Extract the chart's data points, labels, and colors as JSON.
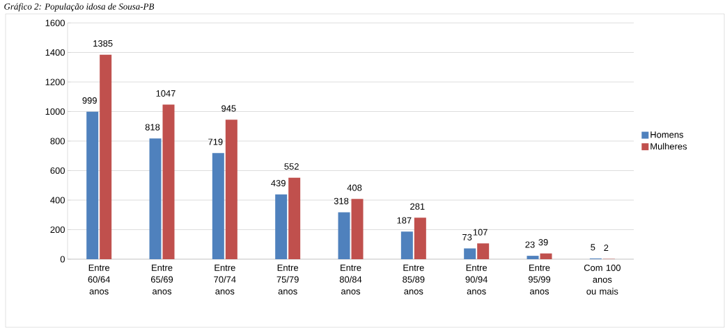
{
  "chart_data": {
    "type": "bar",
    "title": "Gráfico 2: População idosa de Sousa-PB",
    "categories": [
      "Entre 60/64 anos",
      "Entre 65/69 anos",
      "Entre 70/74 anos",
      "Entre 75/79 anos",
      "Entre 80/84 anos",
      "Entre 85/89 anos",
      "Entre 90/94 anos",
      "Entre 95/99 anos",
      "Com 100 anos ou mais"
    ],
    "series": [
      {
        "name": "Homens",
        "color": "#4f81bd",
        "values": [
          999,
          818,
          719,
          439,
          318,
          187,
          73,
          23,
          5
        ]
      },
      {
        "name": "Mulheres",
        "color": "#c0504d",
        "values": [
          1385,
          1047,
          945,
          552,
          408,
          281,
          107,
          39,
          2
        ]
      }
    ],
    "ylim": [
      0,
      1600
    ],
    "yticks": [
      0,
      200,
      400,
      600,
      800,
      1000,
      1200,
      1400,
      1600
    ],
    "grid": "y",
    "legend": "right",
    "data_labels": true
  }
}
